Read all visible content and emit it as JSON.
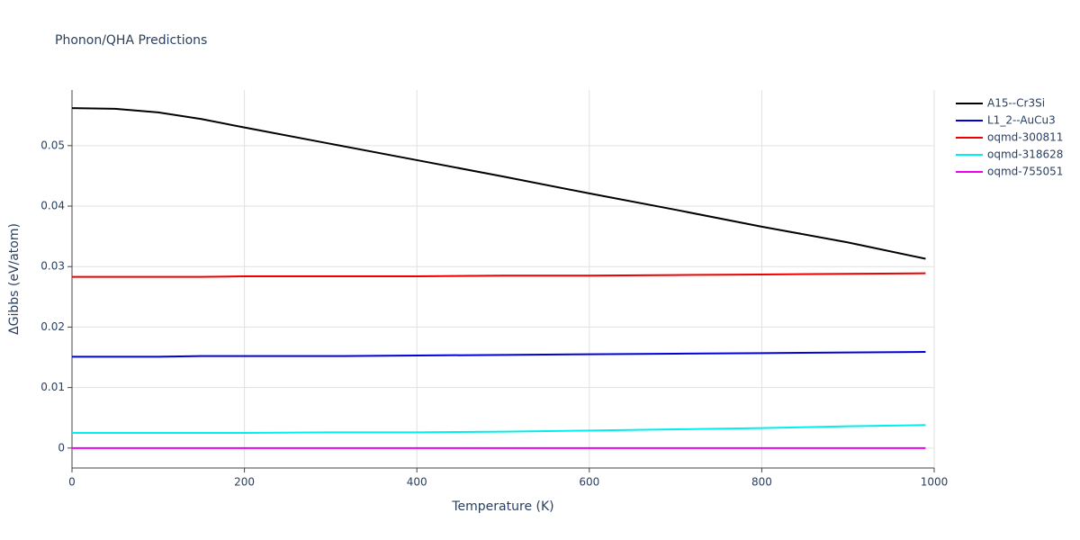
{
  "chart_data": {
    "type": "line",
    "title": "Phonon/QHA Predictions",
    "x_label": "Temperature (K)",
    "y_label": "ΔGibbs (eV/atom)",
    "x": [
      0,
      50,
      100,
      150,
      200,
      300,
      400,
      500,
      600,
      700,
      800,
      900,
      990
    ],
    "series": [
      {
        "name": "A15--Cr3Si",
        "color": "#000000",
        "values": [
          0.0562,
          0.0561,
          0.0555,
          0.0544,
          0.053,
          0.0503,
          0.0476,
          0.0449,
          0.0421,
          0.0394,
          0.0366,
          0.034,
          0.0313
        ]
      },
      {
        "name": "L1_2--AuCu3",
        "color": "#0000dd",
        "values": [
          0.0151,
          0.0151,
          0.0151,
          0.0152,
          0.0152,
          0.0152,
          0.0153,
          0.0154,
          0.0155,
          0.0156,
          0.0157,
          0.0158,
          0.0159
        ]
      },
      {
        "name": "oqmd-300811",
        "color": "#ee0000",
        "values": [
          0.0283,
          0.0283,
          0.0283,
          0.0283,
          0.0284,
          0.0284,
          0.0284,
          0.0285,
          0.0285,
          0.0286,
          0.0287,
          0.0288,
          0.0289
        ]
      },
      {
        "name": "oqmd-318628",
        "color": "#00eeee",
        "values": [
          0.0025,
          0.0025,
          0.0025,
          0.0025,
          0.0025,
          0.0026,
          0.0026,
          0.0027,
          0.0029,
          0.0031,
          0.0033,
          0.0036,
          0.0038
        ]
      },
      {
        "name": "oqmd-755051",
        "color": "#ee00ee",
        "values": [
          0,
          0,
          0,
          0,
          0,
          0,
          0,
          0,
          0,
          0,
          0,
          0,
          0
        ]
      }
    ],
    "xlim": [
      0,
      1000
    ],
    "xticks": [
      0,
      200,
      400,
      600,
      800,
      1000
    ],
    "ylim": [
      -0.0033,
      0.0592
    ],
    "yticks": [
      0,
      0.01,
      0.02,
      0.03,
      0.04,
      0.05
    ],
    "grid": true,
    "legend": "right"
  }
}
